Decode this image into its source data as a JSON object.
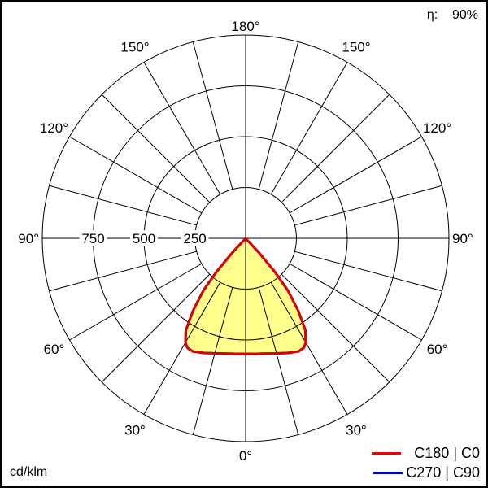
{
  "chart_data": {
    "type": "polar",
    "unit_label": "cd/klm",
    "efficiency_label": "η:",
    "efficiency_value": "90%",
    "radial_ticks": [
      250,
      500,
      750,
      1000
    ],
    "radial_tick_labels": [
      "250",
      "500",
      "750"
    ],
    "rmax": 1000,
    "angle_labels": [
      {
        "angle": 0,
        "text": "0°"
      },
      {
        "angle": 30,
        "text": "30°"
      },
      {
        "angle": 60,
        "text": "60°"
      },
      {
        "angle": 90,
        "text": "90°"
      },
      {
        "angle": 120,
        "text": "120°"
      },
      {
        "angle": 150,
        "text": "150°"
      },
      {
        "angle": 180,
        "text": "180°"
      }
    ],
    "grid": true,
    "legend_position": "bottom-right",
    "series": [
      {
        "name": "C180 | C0",
        "color": "#e00000",
        "angles": [
          0,
          5,
          10,
          15,
          20,
          25,
          28,
          30,
          33,
          36,
          39,
          41,
          43,
          45,
          90,
          180
        ],
        "values": [
          568,
          570,
          576,
          586,
          600,
          614,
          610,
          592,
          540,
          440,
          330,
          220,
          100,
          0,
          0,
          0
        ]
      },
      {
        "name": "C270 | C90",
        "color": "#0000c0",
        "angles": [
          0,
          5,
          10,
          15,
          20,
          25,
          28,
          30,
          33,
          36,
          39,
          41,
          43,
          45,
          90,
          180
        ],
        "values": [
          568,
          570,
          576,
          586,
          600,
          614,
          610,
          592,
          540,
          440,
          330,
          220,
          100,
          0,
          0,
          0
        ]
      }
    ],
    "fill_color": "#ffff8c"
  }
}
